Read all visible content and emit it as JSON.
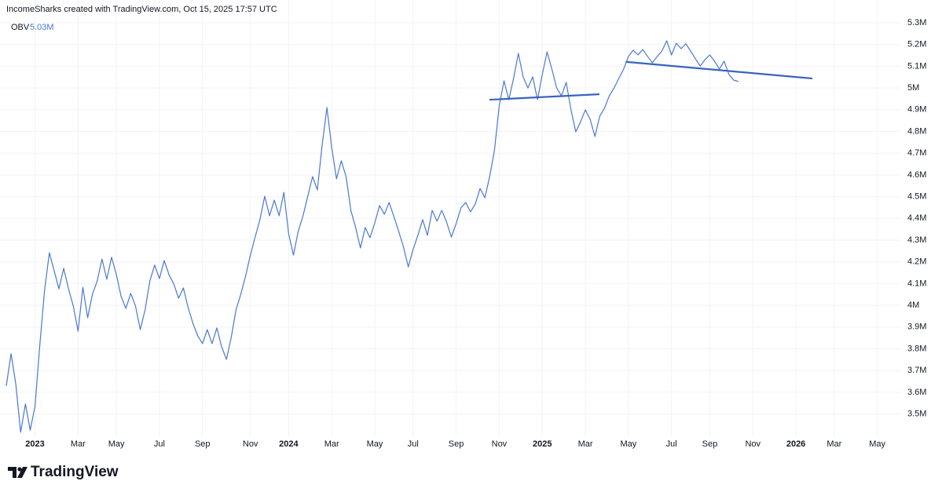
{
  "chart_data": {
    "type": "line",
    "title": "IncomeSharks created with TradingView.com, Oct 15, 2025 17:57 UTC",
    "brand": "TradingView",
    "last_value_label": "5.03M",
    "categories": [
      null,
      null,
      null,
      null,
      null,
      null,
      "2023",
      null,
      null,
      null,
      null,
      null,
      null,
      null,
      null,
      "Mar",
      null,
      null,
      null,
      null,
      null,
      null,
      null,
      "May",
      null,
      null,
      null,
      null,
      null,
      null,
      null,
      null,
      "Jul",
      null,
      null,
      null,
      null,
      null,
      null,
      null,
      null,
      "Sep",
      null,
      null,
      null,
      null,
      null,
      null,
      null,
      null,
      null,
      "Nov",
      null,
      null,
      null,
      null,
      null,
      null,
      null,
      "2024",
      null,
      null,
      null,
      null,
      null,
      null,
      null,
      null,
      "Mar",
      null,
      null,
      null,
      null,
      null,
      null,
      null,
      null,
      "May",
      null,
      null,
      null,
      null,
      null,
      null,
      null,
      "Jul",
      null,
      null,
      null,
      null,
      null,
      null,
      null,
      null,
      "Sep",
      null,
      null,
      null,
      null,
      null,
      null,
      null,
      null,
      "Nov",
      null,
      null,
      null,
      null,
      null,
      null,
      null,
      null,
      "2025",
      null,
      null,
      null,
      null,
      null,
      null,
      null,
      null,
      "Mar",
      null,
      null,
      null,
      null,
      null,
      null,
      null,
      null,
      "May",
      null,
      null,
      null,
      null,
      null,
      null,
      null,
      null,
      "Jul",
      null,
      null,
      null,
      null,
      null,
      null,
      null,
      "Sep",
      null,
      null,
      null,
      null,
      null,
      null,
      null,
      null,
      "Nov",
      null,
      null,
      null,
      null,
      null,
      null,
      null,
      null,
      "2026",
      null,
      null,
      null,
      null,
      null,
      null,
      null,
      "Mar",
      null,
      null,
      null,
      null,
      null,
      null,
      null,
      null,
      "May",
      null,
      null,
      null,
      null
    ],
    "series": [
      {
        "name": "OBV",
        "color": "#4a78d0",
        "values": [
          3629000,
          3777000,
          3636000,
          3416000,
          3546000,
          3426000,
          3535000,
          3816000,
          4069000,
          4242000,
          4159000,
          4076000,
          4170000,
          4076000,
          3997000,
          3881000,
          4083000,
          3943000,
          4051000,
          4112000,
          4213000,
          4120000,
          4221000,
          4141000,
          4040000,
          3986000,
          4055000,
          3997000,
          3888000,
          3979000,
          4112000,
          4185000,
          4123000,
          4206000,
          4141000,
          4098000,
          4033000,
          4080000,
          3990000,
          3917000,
          3860000,
          3824000,
          3888000,
          3824000,
          3896000,
          3809000,
          3751000,
          3852000,
          3979000,
          4051000,
          4134000,
          4231000,
          4314000,
          4394000,
          4502000,
          4412000,
          4484000,
          4412000,
          4520000,
          4329000,
          4231000,
          4340000,
          4412000,
          4502000,
          4592000,
          4531000,
          4737000,
          4910000,
          4726000,
          4582000,
          4665000,
          4592000,
          4437000,
          4358000,
          4264000,
          4358000,
          4311000,
          4379000,
          4459000,
          4419000,
          4473000,
          4408000,
          4340000,
          4268000,
          4177000,
          4257000,
          4322000,
          4394000,
          4322000,
          4437000,
          4387000,
          4437000,
          4383000,
          4314000,
          4376000,
          4448000,
          4473000,
          4430000,
          4466000,
          4538000,
          4495000,
          4592000,
          4712000,
          4917000,
          5033000,
          4946000,
          5044000,
          5159000,
          5051000,
          5000000,
          5051000,
          4946000,
          5062000,
          5166000,
          5087000,
          5000000,
          4964000,
          5026000,
          4899000,
          4798000,
          4845000,
          4899000,
          4856000,
          4777000,
          4870000,
          4907000,
          4964000,
          5000000,
          5044000,
          5087000,
          5145000,
          5174000,
          5152000,
          5177000,
          5145000,
          5116000,
          5145000,
          5170000,
          5217000,
          5152000,
          5206000,
          5181000,
          5203000,
          5170000,
          5134000,
          5101000,
          5130000,
          5152000,
          5123000,
          5087000,
          5123000,
          5062000,
          5036000,
          5030000,
          null,
          null,
          null,
          null,
          null,
          null,
          null,
          null,
          null,
          null,
          null,
          null,
          null,
          null,
          null,
          null,
          null,
          null,
          null,
          null,
          null,
          null,
          null,
          null,
          null,
          null,
          null,
          null,
          null,
          null,
          null,
          null,
          null
        ]
      }
    ],
    "trendlines": [
      {
        "color": "#3a63c0",
        "x": [
          101.1,
          123.8
        ],
        "y": [
          4946000,
          4971000
        ]
      },
      {
        "color": "#3a63c0",
        "x": [
          129.6,
          168.3
        ],
        "y": [
          5120000,
          5044000
        ]
      }
    ],
    "ylim": [
      3397500,
      5404700
    ],
    "yticks": [
      {
        "value": 3500000,
        "label": "3.5M"
      },
      {
        "value": 3600000,
        "label": "3.6M"
      },
      {
        "value": 3700000,
        "label": "3.7M"
      },
      {
        "value": 3800000,
        "label": "3.8M"
      },
      {
        "value": 3900000,
        "label": "3.9M"
      },
      {
        "value": 4000000,
        "label": "4M"
      },
      {
        "value": 4100000,
        "label": "4.1M"
      },
      {
        "value": 4200000,
        "label": "4.2M"
      },
      {
        "value": 4300000,
        "label": "4.3M"
      },
      {
        "value": 4400000,
        "label": "4.4M"
      },
      {
        "value": 4500000,
        "label": "4.5M"
      },
      {
        "value": 4600000,
        "label": "4.6M"
      },
      {
        "value": 4700000,
        "label": "4.7M"
      },
      {
        "value": 4800000,
        "label": "4.8M"
      },
      {
        "value": 4900000,
        "label": "4.9M"
      },
      {
        "value": 5000000,
        "label": "5M"
      },
      {
        "value": 5100000,
        "label": "5.1M"
      },
      {
        "value": 5200000,
        "label": "5.2M"
      },
      {
        "value": 5300000,
        "label": "5.3M"
      }
    ],
    "grid": true
  }
}
